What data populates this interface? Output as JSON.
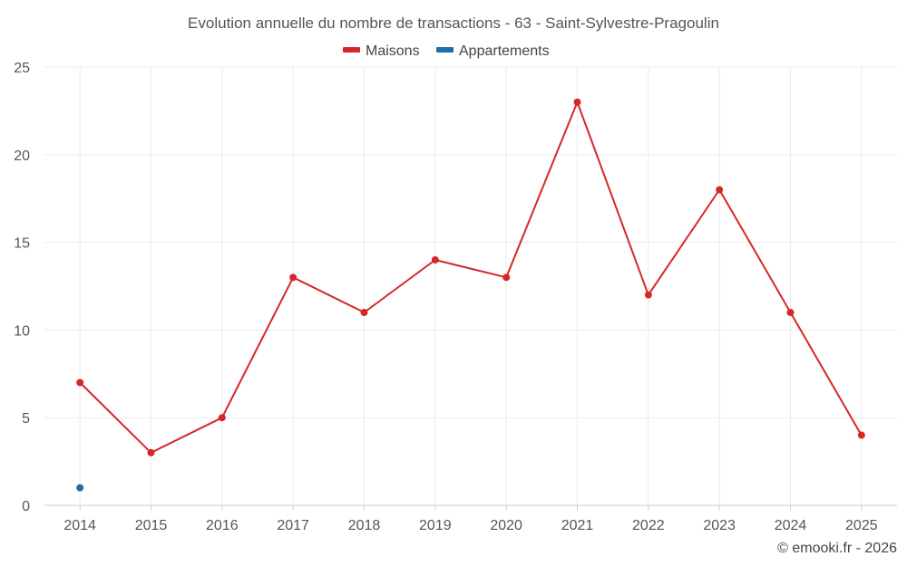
{
  "chart_data": {
    "type": "line",
    "title": "Evolution annuelle du nombre de transactions - 63 - Saint-Sylvestre-Pragoulin",
    "categories": [
      "2014",
      "2015",
      "2016",
      "2017",
      "2018",
      "2019",
      "2020",
      "2021",
      "2022",
      "2023",
      "2024",
      "2025"
    ],
    "series": [
      {
        "name": "Maisons",
        "color": "#d62728",
        "values": [
          7,
          3,
          5,
          13,
          11,
          14,
          13,
          23,
          12,
          18,
          11,
          4
        ]
      },
      {
        "name": "Appartements",
        "color": "#1f6fa8",
        "values": [
          1,
          null,
          null,
          null,
          null,
          null,
          null,
          null,
          null,
          null,
          null,
          null
        ]
      }
    ],
    "xlabel": "",
    "ylabel": "",
    "ylim": [
      0,
      25
    ],
    "yticks": [
      "0",
      "5",
      "10",
      "15",
      "20",
      "25"
    ],
    "grid": true,
    "legend_position": "top-center"
  },
  "credit": "© emooki.fr - 2026"
}
